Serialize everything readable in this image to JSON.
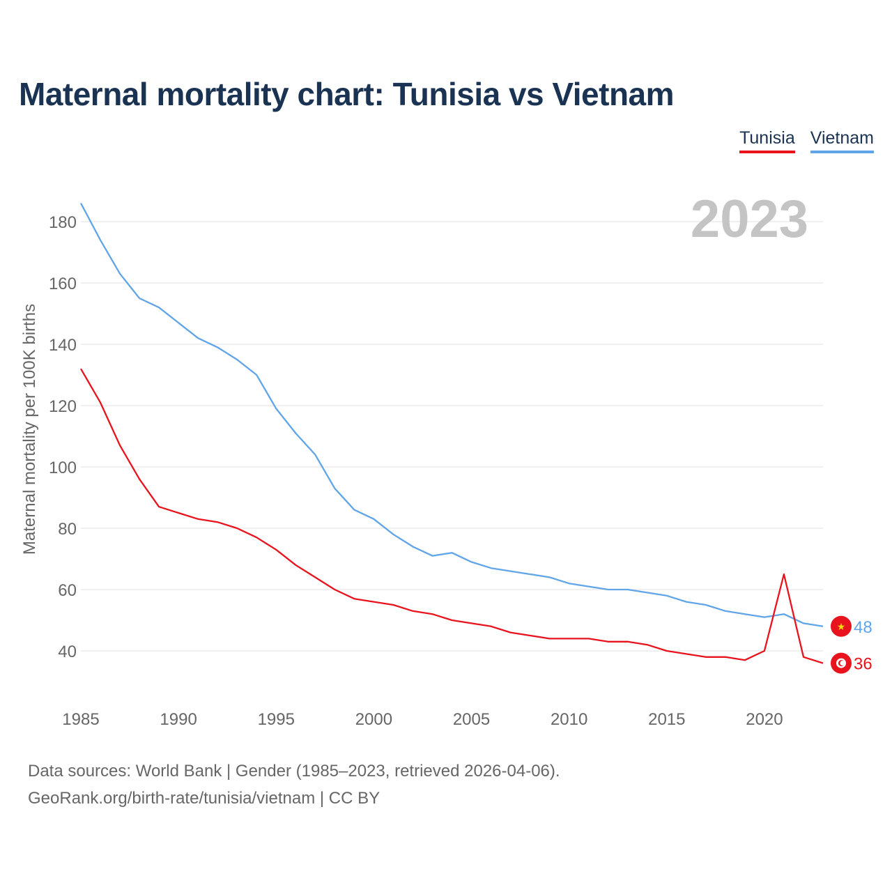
{
  "title": "Maternal mortality chart: Tunisia vs Vietnam",
  "legend": [
    {
      "label": "Tunisia",
      "color": "#e8131c"
    },
    {
      "label": "Vietnam",
      "color": "#60a5e8"
    }
  ],
  "year_badge": "2023",
  "footer": {
    "line1": "Data sources: World Bank | Gender (1985–2023, retrieved 2026-04-06).",
    "line2": "GeoRank.org/birth-rate/tunisia/vietnam | CC BY"
  },
  "chart_data": {
    "type": "line",
    "title": "Maternal mortality chart: Tunisia vs Vietnam",
    "xlabel": "",
    "ylabel": "Maternal mortality per 100K births",
    "xlim": [
      1985,
      2023
    ],
    "ylim": [
      28,
      190
    ],
    "grid": true,
    "x_ticks": [
      1985,
      1990,
      1995,
      2000,
      2005,
      2010,
      2015,
      2020
    ],
    "y_ticks": [
      40,
      60,
      80,
      100,
      120,
      140,
      160,
      180
    ],
    "x": [
      1985,
      1986,
      1987,
      1988,
      1989,
      1990,
      1991,
      1992,
      1993,
      1994,
      1995,
      1996,
      1997,
      1998,
      1999,
      2000,
      2001,
      2002,
      2003,
      2004,
      2005,
      2006,
      2007,
      2008,
      2009,
      2010,
      2011,
      2012,
      2013,
      2014,
      2015,
      2016,
      2017,
      2018,
      2019,
      2020,
      2021,
      2022,
      2023
    ],
    "series": [
      {
        "name": "Tunisia",
        "color": "#e8131c",
        "end_label": "36",
        "flag_icon": "tunisia-flag-icon",
        "values": [
          132,
          121,
          107,
          96,
          87,
          85,
          83,
          82,
          80,
          77,
          73,
          68,
          64,
          60,
          57,
          56,
          55,
          53,
          52,
          50,
          49,
          48,
          46,
          45,
          44,
          44,
          44,
          43,
          43,
          42,
          40,
          39,
          38,
          38,
          37,
          40,
          65,
          38,
          36
        ]
      },
      {
        "name": "Vietnam",
        "color": "#60a5e8",
        "end_label": "48",
        "flag_icon": "vietnam-flag-icon",
        "values": [
          186,
          174,
          163,
          155,
          152,
          147,
          142,
          139,
          135,
          130,
          119,
          111,
          104,
          93,
          86,
          83,
          78,
          74,
          71,
          72,
          69,
          67,
          66,
          65,
          64,
          62,
          61,
          60,
          60,
          59,
          58,
          56,
          55,
          53,
          52,
          51,
          52,
          49,
          48
        ]
      }
    ]
  }
}
